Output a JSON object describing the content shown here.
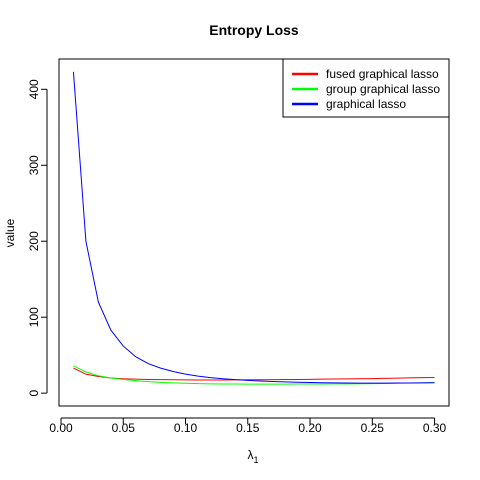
{
  "chart_data": {
    "type": "line",
    "title": "Entropy Loss",
    "xlabel_main": "λ",
    "xlabel_sub": "1",
    "ylabel": "value",
    "xlim": [
      -0.0016,
      0.3116
    ],
    "ylim": [
      -16.9,
      439.9
    ],
    "xticks": [
      0.0,
      0.05,
      0.1,
      0.15,
      0.2,
      0.25,
      0.3
    ],
    "xtick_labels": [
      "0.00",
      "0.05",
      "0.10",
      "0.15",
      "0.20",
      "0.25",
      "0.30"
    ],
    "yticks": [
      0,
      100,
      200,
      300,
      400
    ],
    "ytick_labels": [
      "0",
      "100",
      "200",
      "300",
      "400"
    ],
    "legend_position": "top-right",
    "x": [
      0.01,
      0.02,
      0.03,
      0.04,
      0.05,
      0.06,
      0.07,
      0.08,
      0.09,
      0.1,
      0.11,
      0.12,
      0.13,
      0.14,
      0.15,
      0.16,
      0.17,
      0.18,
      0.19,
      0.2,
      0.21,
      0.22,
      0.23,
      0.24,
      0.25,
      0.26,
      0.27,
      0.28,
      0.29,
      0.3
    ],
    "series": [
      {
        "name": "fused graphical lasso",
        "color": "#ff0000",
        "values": [
          33,
          25,
          22,
          20,
          19,
          18.4,
          18,
          17.8,
          17.6,
          17.5,
          17.4,
          17.4,
          17.4,
          17.5,
          17.6,
          17.7,
          17.8,
          17.9,
          18.0,
          18.2,
          18.4,
          18.6,
          18.8,
          19.0,
          19.2,
          19.5,
          19.8,
          20.1,
          20.4,
          20.7
        ]
      },
      {
        "name": "group graphical lasso",
        "color": "#00ff00",
        "values": [
          36,
          28,
          23,
          20,
          18,
          16.5,
          15.2,
          14.2,
          13.5,
          13,
          12.6,
          12.3,
          12.1,
          12.0,
          11.9,
          11.9,
          11.9,
          11.9,
          12.0,
          12.0,
          12.1,
          12.2,
          12.3,
          12.4,
          12.6,
          12.8,
          13.0,
          13.3,
          13.6,
          13.9
        ]
      },
      {
        "name": "graphical lasso",
        "color": "#0000ff",
        "values": [
          423,
          200,
          120,
          83,
          62,
          48,
          39,
          33,
          28.5,
          25,
          22.5,
          20.5,
          19,
          17.8,
          16.8,
          16,
          15.3,
          14.8,
          14.4,
          14.0,
          13.7,
          13.5,
          13.3,
          13.2,
          13.2,
          13.2,
          13.3,
          13.4,
          13.5,
          13.7
        ]
      }
    ]
  }
}
